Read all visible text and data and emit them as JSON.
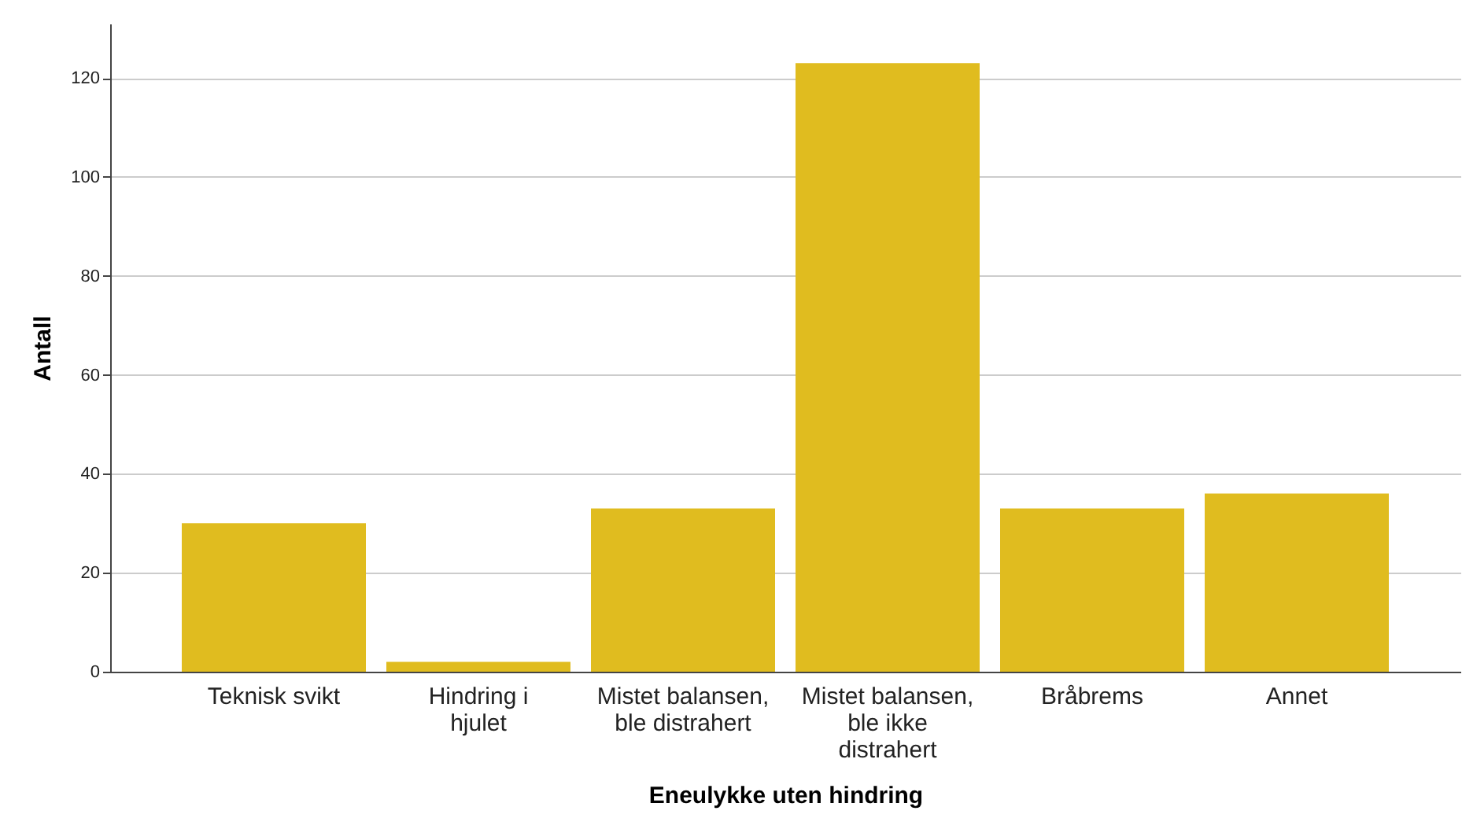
{
  "chart_data": {
    "type": "bar",
    "xlabel": "Eneulykke uten hindring",
    "ylabel": "Antall",
    "categories": [
      "Teknisk svikt",
      "Hindring i hjulet",
      "Mistet balansen, ble distrahert",
      "Mistet balansen, ble ikke distrahert",
      "Bråbrems",
      "Annet"
    ],
    "values": [
      30,
      2,
      33,
      123,
      33,
      36
    ],
    "color": "#e0bc1f",
    "ylim": [
      0,
      131
    ],
    "yticks": [
      0,
      20,
      40,
      60,
      80,
      100,
      120
    ],
    "grid": "y"
  }
}
